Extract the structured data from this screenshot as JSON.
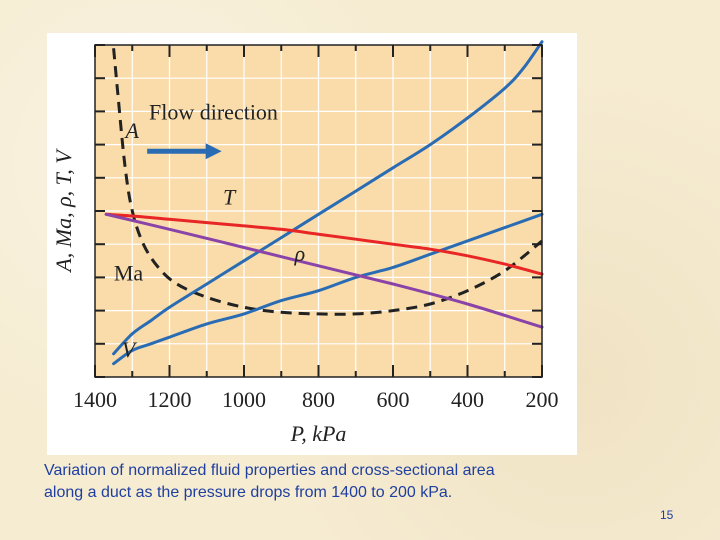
{
  "slide": {
    "caption_line1": "Variation of normalized fluid properties and cross-sectional area",
    "caption_line2": "along a duct as the pressure drops from 1400 to 200 kPa.",
    "page_number": "15"
  },
  "chart_data": {
    "type": "line",
    "title": "",
    "xlabel": "P, kPa",
    "ylabel": "A, Ma, ρ, T, V",
    "x_ticks": [
      1400,
      1200,
      1000,
      800,
      600,
      400,
      200
    ],
    "xlim": [
      1400,
      200
    ],
    "ylim": [
      0,
      1
    ],
    "x_reversed": true,
    "grid": true,
    "annotation": "Flow direction",
    "colors": {
      "plot_bg": "#f9dcaa",
      "grid": "#ffffff",
      "axis": "#222222",
      "blue": "#2a6cb4",
      "red": "#e82626",
      "purple": "#8a43a8",
      "black": "#222222"
    },
    "series": [
      {
        "name": "A",
        "color": "#222222",
        "dashed": true,
        "x": [
          1350,
          1340,
          1320,
          1300,
          1270,
          1230,
          1180,
          1100,
          1000,
          900,
          800,
          700,
          600,
          500,
          400,
          300,
          200
        ],
        "y": [
          0.99,
          0.87,
          0.64,
          0.5,
          0.4,
          0.33,
          0.28,
          0.24,
          0.21,
          0.195,
          0.19,
          0.19,
          0.2,
          0.22,
          0.26,
          0.32,
          0.41
        ]
      },
      {
        "name": "T",
        "color": "#2a6cb4",
        "x": [
          1350,
          1300,
          1250,
          1200,
          1100,
          1000,
          900,
          800,
          700,
          600,
          500,
          400,
          300,
          250,
          200
        ],
        "y": [
          0.07,
          0.13,
          0.17,
          0.21,
          0.28,
          0.35,
          0.42,
          0.49,
          0.56,
          0.63,
          0.7,
          0.78,
          0.87,
          0.93,
          1.01
        ]
      },
      {
        "name": "ρ",
        "color": "#2a6cb4",
        "x": [
          1350,
          1300,
          1250,
          1200,
          1100,
          1000,
          900,
          800,
          700,
          600,
          500,
          400,
          300,
          200
        ],
        "y": [
          0.04,
          0.08,
          0.1,
          0.12,
          0.16,
          0.19,
          0.23,
          0.26,
          0.3,
          0.33,
          0.37,
          0.41,
          0.45,
          0.49
        ]
      },
      {
        "name": "Ma",
        "color": "#e82626",
        "x": [
          1370,
          1300,
          1200,
          1100,
          1000,
          900,
          800,
          700,
          600,
          500,
          400,
          300,
          200
        ],
        "y": [
          0.49,
          0.485,
          0.475,
          0.465,
          0.455,
          0.445,
          0.43,
          0.415,
          0.4,
          0.385,
          0.365,
          0.34,
          0.31
        ]
      },
      {
        "name": "V",
        "color": "#8a43a8",
        "x": [
          1370,
          1200,
          1000,
          800,
          600,
          400,
          200
        ],
        "y": [
          0.49,
          0.445,
          0.39,
          0.335,
          0.28,
          0.22,
          0.15
        ]
      }
    ],
    "curve_labels": [
      {
        "text": "A",
        "x": 1300,
        "y": 0.72
      },
      {
        "text": "T",
        "x": 1040,
        "y": 0.52
      },
      {
        "text": "ρ",
        "x": 850,
        "y": 0.35
      },
      {
        "text": "Ma",
        "x": 1310,
        "y": 0.29
      },
      {
        "text": "V",
        "x": 1310,
        "y": 0.06
      }
    ],
    "arrow": {
      "x_start": 1260,
      "x_end": 1060,
      "y": 0.68
    }
  }
}
